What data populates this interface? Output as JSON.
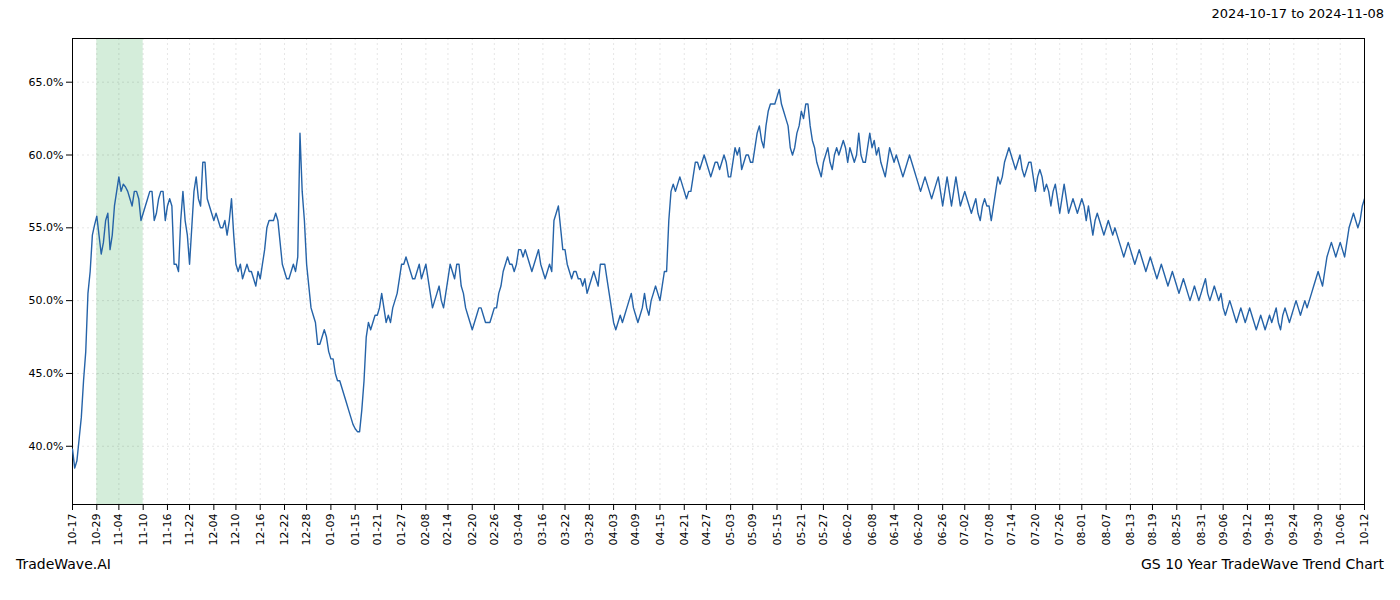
{
  "chart_data": {
    "type": "line",
    "title": "GS 10 Year TradeWave Trend Chart",
    "subtitle": "2024-10-17 to 2024-11-08",
    "annotation": "TradeWave.AI",
    "color": "#2563a8",
    "grid": true,
    "ylim": [
      36,
      68
    ],
    "yticks": [
      {
        "value": 40.0,
        "label": "40.0%"
      },
      {
        "value": 45.0,
        "label": "45.0%"
      },
      {
        "value": 50.0,
        "label": "50.0%"
      },
      {
        "value": 55.0,
        "label": "55.0%"
      },
      {
        "value": 60.0,
        "label": "60.0%"
      },
      {
        "value": 65.0,
        "label": "65.0%"
      }
    ],
    "highlight": {
      "start": "10-29",
      "end": "11-10",
      "color": "#d4edda"
    },
    "categories": [
      "10-17",
      null,
      null,
      null,
      null,
      null,
      null,
      null,
      null,
      null,
      null,
      "10-29",
      null,
      null,
      null,
      null,
      null,
      null,
      null,
      null,
      null,
      "11-04",
      null,
      null,
      null,
      null,
      null,
      null,
      null,
      null,
      null,
      null,
      "11-10",
      null,
      null,
      null,
      null,
      null,
      null,
      null,
      null,
      null,
      null,
      "11-16",
      null,
      null,
      null,
      null,
      null,
      null,
      null,
      null,
      null,
      "11-22",
      null,
      null,
      null,
      null,
      null,
      null,
      null,
      null,
      null,
      null,
      "12-04",
      null,
      null,
      null,
      null,
      null,
      null,
      null,
      null,
      null,
      "12-10",
      null,
      null,
      null,
      null,
      null,
      null,
      null,
      null,
      null,
      null,
      "12-16",
      null,
      null,
      null,
      null,
      null,
      null,
      null,
      null,
      null,
      null,
      "12-22",
      null,
      null,
      null,
      null,
      null,
      null,
      null,
      null,
      null,
      "12-28",
      null,
      null,
      null,
      null,
      null,
      null,
      null,
      null,
      null,
      null,
      "01-09",
      null,
      null,
      null,
      null,
      null,
      null,
      null,
      null,
      null,
      null,
      "01-15",
      null,
      null,
      null,
      null,
      null,
      null,
      null,
      null,
      null,
      "01-21",
      null,
      null,
      null,
      null,
      null,
      null,
      null,
      null,
      null,
      null,
      "01-27",
      null,
      null,
      null,
      null,
      null,
      null,
      null,
      null,
      null,
      null,
      "02-08",
      null,
      null,
      null,
      null,
      null,
      null,
      null,
      null,
      null,
      "02-14",
      null,
      null,
      null,
      null,
      null,
      null,
      null,
      null,
      null,
      null,
      "02-20",
      null,
      null,
      null,
      null,
      null,
      null,
      null,
      null,
      null,
      "02-26",
      null,
      null,
      null,
      null,
      null,
      null,
      null,
      null,
      null,
      null,
      "03-04",
      null,
      null,
      null,
      null,
      null,
      null,
      null,
      null,
      null,
      null,
      "03-16",
      null,
      null,
      null,
      null,
      null,
      null,
      null,
      null,
      null,
      "03-22",
      null,
      null,
      null,
      null,
      null,
      null,
      null,
      null,
      null,
      null,
      "03-28",
      null,
      null,
      null,
      null,
      null,
      null,
      null,
      null,
      null,
      null,
      "04-03",
      null,
      null,
      null,
      null,
      null,
      null,
      null,
      null,
      null,
      "04-09",
      null,
      null,
      null,
      null,
      null,
      null,
      null,
      null,
      null,
      null,
      "04-15",
      null,
      null,
      null,
      null,
      null,
      null,
      null,
      null,
      null,
      null,
      "04-21",
      null,
      null,
      null,
      null,
      null,
      null,
      null,
      null,
      null,
      "04-27",
      null,
      null,
      null,
      null,
      null,
      null,
      null,
      null,
      null,
      null,
      "05-03",
      null,
      null,
      null,
      null,
      null,
      null,
      null,
      null,
      null,
      "05-09",
      null,
      null,
      null,
      null,
      null,
      null,
      null,
      null,
      null,
      null,
      "05-15",
      null,
      null,
      null,
      null,
      null,
      null,
      null,
      null,
      null,
      null,
      "05-21",
      null,
      null,
      null,
      null,
      null,
      null,
      null,
      null,
      null,
      "05-27",
      null,
      null,
      null,
      null,
      null,
      null,
      null,
      null,
      null,
      null,
      "06-02",
      null,
      null,
      null,
      null,
      null,
      null,
      null,
      null,
      null,
      null,
      "06-08",
      null,
      null,
      null,
      null,
      null,
      null,
      null,
      null,
      null,
      "06-14",
      null,
      null,
      null,
      null,
      null,
      null,
      null,
      null,
      null,
      null,
      "06-20",
      null,
      null,
      null,
      null,
      null,
      null,
      null,
      null,
      null,
      null,
      "06-26",
      null,
      null,
      null,
      null,
      null,
      null,
      null,
      null,
      null,
      "07-02",
      null,
      null,
      null,
      null,
      null,
      null,
      null,
      null,
      null,
      null,
      "07-08",
      null,
      null,
      null,
      null,
      null,
      null,
      null,
      null,
      null,
      "07-14",
      null,
      null,
      null,
      null,
      null,
      null,
      null,
      null,
      null,
      null,
      "07-20",
      null,
      null,
      null,
      null,
      null,
      null,
      null,
      null,
      null,
      null,
      "07-26",
      null,
      null,
      null,
      null,
      null,
      null,
      null,
      null,
      null,
      "08-01",
      null,
      null,
      null,
      null,
      null,
      null,
      null,
      null,
      null,
      null,
      "08-07",
      null,
      null,
      null,
      null,
      null,
      null,
      null,
      null,
      null,
      null,
      "08-13",
      null,
      null,
      null,
      null,
      null,
      null,
      null,
      null,
      null,
      "08-19",
      null,
      null,
      null,
      null,
      null,
      null,
      null,
      null,
      null,
      null,
      "08-25",
      null,
      null,
      null,
      null,
      null,
      null,
      null,
      null,
      null,
      null,
      "08-31",
      null,
      null,
      null,
      null,
      null,
      null,
      null,
      null,
      null,
      "09-06",
      null,
      null,
      null,
      null,
      null,
      null,
      null,
      null,
      null,
      null,
      "09-12",
      null,
      null,
      null,
      null,
      null,
      null,
      null,
      null,
      null,
      "09-18",
      null,
      null,
      null,
      null,
      null,
      null,
      null,
      null,
      null,
      null,
      "09-24",
      null,
      null,
      null,
      null,
      null,
      null,
      null,
      null,
      null,
      null,
      "09-30",
      null,
      null,
      null,
      null,
      null,
      null,
      null,
      null,
      null,
      "10-06",
      null,
      null,
      null,
      null,
      null,
      null,
      null,
      null,
      null,
      null,
      "10-12"
    ],
    "values": [
      39.8,
      38.5,
      39.0,
      40.5,
      42.0,
      44.5,
      46.5,
      50.5,
      52.0,
      54.5,
      55.2,
      55.8,
      54.5,
      53.2,
      54.0,
      55.5,
      56.0,
      53.5,
      54.5,
      56.5,
      57.5,
      58.5,
      57.5,
      58.0,
      57.8,
      57.5,
      57.0,
      56.5,
      57.5,
      57.5,
      57.0,
      55.5,
      56.0,
      56.5,
      57.0,
      57.5,
      57.5,
      55.5,
      56.0,
      57.0,
      57.5,
      57.5,
      55.5,
      56.5,
      57.0,
      56.5,
      52.5,
      52.5,
      52.0,
      55.5,
      57.5,
      55.5,
      54.5,
      52.5,
      55.0,
      57.5,
      58.5,
      57.0,
      56.5,
      59.5,
      59.5,
      57.0,
      56.5,
      56.0,
      55.5,
      56.0,
      55.5,
      55.0,
      55.0,
      55.5,
      54.5,
      55.5,
      57.0,
      54.5,
      52.5,
      52.0,
      52.5,
      51.5,
      52.0,
      52.5,
      52.0,
      52.0,
      51.5,
      51.0,
      52.0,
      51.5,
      52.5,
      53.5,
      55.0,
      55.5,
      55.5,
      55.5,
      56.0,
      55.5,
      54.0,
      52.5,
      52.0,
      51.5,
      51.5,
      52.0,
      52.5,
      52.0,
      53.0,
      61.5,
      57.5,
      55.5,
      52.5,
      51.0,
      49.5,
      49.0,
      48.5,
      47.0,
      47.0,
      47.5,
      48.0,
      47.5,
      46.5,
      46.0,
      46.0,
      45.0,
      44.5,
      44.5,
      44.0,
      43.5,
      43.0,
      42.5,
      42.0,
      41.5,
      41.2,
      41.0,
      41.0,
      42.5,
      44.5,
      47.5,
      48.5,
      48.0,
      48.5,
      49.0,
      49.0,
      49.5,
      50.5,
      49.5,
      48.5,
      49.0,
      48.5,
      49.5,
      50.0,
      50.5,
      51.5,
      52.5,
      52.5,
      53.0,
      52.5,
      52.0,
      51.5,
      51.5,
      52.0,
      52.5,
      51.5,
      52.0,
      52.5,
      51.5,
      50.5,
      49.5,
      50.0,
      50.5,
      51.0,
      50.0,
      49.5,
      50.5,
      51.5,
      52.5,
      52.0,
      51.5,
      52.5,
      52.5,
      51.0,
      50.5,
      49.5,
      49.0,
      48.5,
      48.0,
      48.5,
      49.0,
      49.5,
      49.5,
      49.0,
      48.5,
      48.5,
      48.5,
      49.0,
      49.5,
      49.5,
      50.5,
      51.0,
      52.0,
      52.5,
      53.0,
      52.5,
      52.5,
      52.0,
      52.5,
      53.5,
      53.5,
      53.0,
      53.5,
      53.0,
      52.5,
      52.0,
      52.5,
      53.0,
      53.5,
      52.5,
      52.0,
      51.5,
      52.0,
      52.5,
      52.0,
      55.5,
      56.0,
      56.5,
      55.0,
      53.5,
      53.5,
      52.5,
      52.0,
      51.5,
      52.0,
      52.0,
      51.5,
      51.5,
      51.0,
      51.5,
      50.5,
      51.0,
      51.5,
      52.0,
      51.5,
      51.0,
      52.5,
      52.5,
      52.5,
      51.5,
      50.5,
      49.5,
      48.5,
      48.0,
      48.5,
      49.0,
      48.5,
      49.0,
      49.5,
      50.0,
      50.5,
      49.5,
      49.0,
      48.5,
      49.0,
      49.5,
      50.5,
      49.5,
      49.0,
      50.0,
      50.5,
      51.0,
      50.5,
      50.0,
      51.0,
      52.0,
      52.0,
      55.5,
      57.5,
      58.0,
      57.5,
      58.0,
      58.5,
      58.0,
      57.5,
      57.0,
      57.5,
      57.5,
      58.5,
      59.5,
      59.5,
      59.0,
      59.5,
      60.0,
      59.5,
      59.0,
      58.5,
      59.0,
      59.5,
      59.5,
      59.0,
      59.5,
      60.0,
      59.5,
      58.5,
      58.5,
      59.5,
      60.5,
      60.0,
      60.5,
      59.0,
      59.5,
      60.0,
      60.0,
      59.5,
      59.5,
      60.5,
      61.5,
      62.0,
      61.0,
      60.5,
      62.0,
      63.0,
      63.5,
      63.5,
      63.5,
      64.0,
      64.5,
      63.5,
      63.0,
      62.5,
      62.0,
      60.5,
      60.0,
      60.5,
      61.5,
      62.0,
      63.0,
      62.5,
      63.5,
      63.5,
      62.0,
      61.0,
      60.5,
      59.5,
      59.0,
      58.5,
      59.5,
      60.0,
      60.5,
      59.5,
      59.0,
      60.0,
      60.5,
      60.0,
      60.5,
      61.0,
      60.5,
      59.5,
      60.5,
      60.0,
      59.5,
      60.0,
      61.5,
      60.0,
      59.5,
      59.5,
      60.5,
      61.5,
      60.5,
      61.0,
      60.0,
      60.5,
      59.5,
      59.0,
      58.5,
      59.5,
      60.5,
      60.0,
      59.5,
      60.0,
      59.5,
      59.0,
      58.5,
      59.0,
      59.5,
      60.0,
      59.5,
      59.0,
      58.5,
      58.0,
      57.5,
      58.0,
      58.5,
      58.0,
      57.5,
      57.0,
      57.5,
      58.0,
      58.5,
      57.5,
      56.5,
      57.5,
      58.5,
      57.5,
      56.5,
      57.5,
      58.5,
      57.5,
      56.5,
      57.0,
      57.5,
      57.0,
      56.5,
      56.0,
      56.5,
      57.0,
      56.0,
      55.5,
      56.5,
      57.0,
      56.5,
      56.5,
      55.5,
      56.5,
      57.5,
      58.5,
      58.0,
      58.5,
      59.5,
      60.0,
      60.5,
      60.0,
      59.5,
      59.0,
      59.5,
      60.0,
      59.0,
      58.5,
      59.0,
      59.5,
      59.5,
      58.5,
      57.5,
      58.5,
      59.0,
      58.5,
      57.5,
      58.0,
      57.5,
      56.5,
      57.5,
      58.0,
      57.0,
      56.0,
      57.0,
      58.0,
      57.0,
      56.0,
      56.5,
      57.0,
      56.5,
      56.0,
      56.5,
      57.0,
      56.5,
      55.5,
      56.5,
      55.5,
      54.5,
      55.5,
      56.0,
      55.5,
      55.0,
      54.5,
      55.0,
      55.5,
      55.0,
      54.5,
      55.0,
      54.5,
      54.0,
      53.5,
      53.0,
      53.5,
      54.0,
      53.5,
      53.0,
      52.5,
      53.0,
      53.5,
      53.0,
      52.5,
      52.0,
      52.5,
      53.0,
      52.5,
      52.0,
      51.5,
      52.0,
      52.5,
      52.0,
      51.5,
      51.0,
      51.5,
      52.0,
      51.5,
      51.0,
      50.5,
      51.0,
      51.5,
      51.0,
      50.5,
      50.0,
      50.5,
      51.0,
      50.5,
      50.0,
      50.5,
      51.0,
      51.5,
      50.5,
      50.0,
      50.5,
      51.0,
      50.5,
      50.0,
      50.5,
      49.5,
      49.0,
      49.5,
      50.0,
      49.5,
      49.0,
      48.5,
      49.0,
      49.5,
      49.0,
      48.5,
      49.0,
      49.5,
      49.0,
      48.5,
      48.0,
      48.5,
      49.0,
      48.5,
      48.0,
      48.5,
      49.0,
      48.5,
      49.0,
      49.5,
      48.5,
      48.0,
      49.0,
      49.5,
      49.0,
      48.5,
      49.0,
      49.5,
      50.0,
      49.5,
      49.0,
      49.5,
      50.0,
      49.5,
      50.0,
      50.5,
      51.0,
      51.5,
      52.0,
      51.5,
      51.0,
      52.0,
      53.0,
      53.5,
      54.0,
      53.5,
      53.0,
      53.5,
      54.0,
      53.5,
      53.0,
      54.0,
      55.0,
      55.5,
      56.0,
      55.5,
      55.0,
      55.5,
      56.5,
      57.0
    ]
  }
}
